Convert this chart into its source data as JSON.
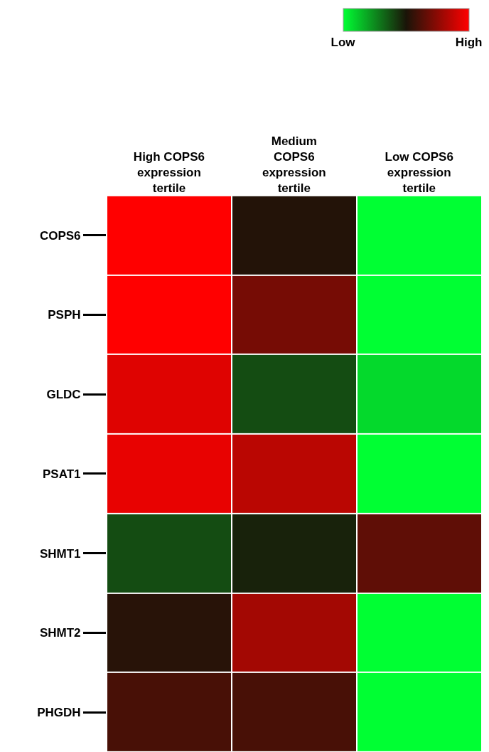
{
  "chart_data": {
    "type": "heatmap",
    "categories": [
      "High COPS6 expression tertile",
      "Medium COPS6 expression tertile",
      "Low COPS6 expression tertile"
    ],
    "y_categories": [
      "COPS6",
      "PSPH",
      "GLDC",
      "PSAT1",
      "SHMT1",
      "SHMT2",
      "PHGDH"
    ],
    "cells": [
      [
        1.0,
        0.52,
        0.0
      ],
      [
        1.0,
        0.7,
        0.0
      ],
      [
        0.93,
        0.38,
        0.08
      ],
      [
        0.95,
        0.85,
        0.0
      ],
      [
        0.38,
        0.47,
        0.65
      ],
      [
        0.53,
        0.8,
        0.0
      ],
      [
        0.6,
        0.6,
        0.0
      ]
    ],
    "clim": [
      0,
      1
    ],
    "cticks": [
      {
        "value": 0,
        "label": "Low"
      },
      {
        "value": 1,
        "label": "High"
      }
    ]
  }
}
